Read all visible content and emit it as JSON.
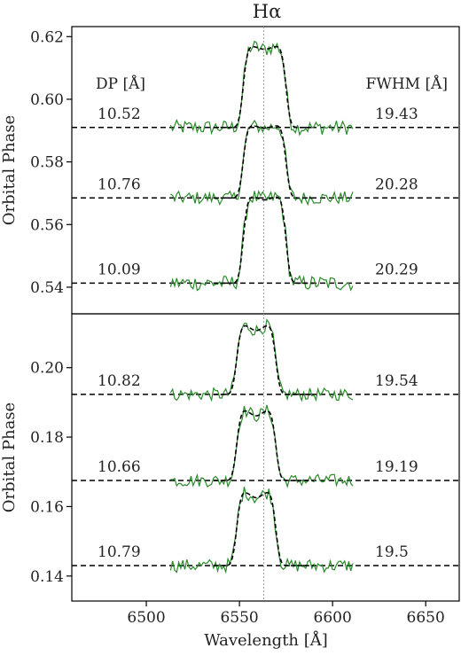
{
  "chart_data": {
    "type": "line",
    "title": "Hα",
    "xlabel": "Wavelength [Å]",
    "xlim": [
      6460,
      6668
    ],
    "xticks": [
      6500,
      6550,
      6600,
      6650
    ],
    "rest_wavelength_marker": 6563,
    "header_left": "DP [Å]",
    "header_right": "FWHM [Å]",
    "panels": [
      {
        "ylabel": "Orbital Phase",
        "ylim": [
          0.5315,
          0.6232
        ],
        "yticks": [
          0.54,
          0.56,
          0.58,
          0.6,
          0.62
        ],
        "ytick_labels": [
          "0.54",
          "0.56",
          "0.58",
          "0.60",
          "0.62"
        ],
        "profiles": [
          {
            "phase": 0.591,
            "peak_top": 0.617,
            "dp": "10.52",
            "fwhm": "19.43"
          },
          {
            "phase": 0.5685,
            "peak_top": 0.5917,
            "dp": "10.76",
            "fwhm": "20.28"
          },
          {
            "phase": 0.5413,
            "peak_top": 0.569,
            "dp": "10.09",
            "fwhm": "20.29"
          }
        ]
      },
      {
        "ylabel": "Orbital Phase",
        "ylim": [
          0.1328,
          0.2155
        ],
        "yticks": [
          0.14,
          0.16,
          0.18,
          0.2
        ],
        "ytick_labels": [
          "0.14",
          "0.16",
          "0.18",
          "0.20"
        ],
        "profiles": [
          {
            "phase": 0.1923,
            "peak_top": 0.2125,
            "dp": "10.82",
            "fwhm": "19.54"
          },
          {
            "phase": 0.1675,
            "peak_top": 0.188,
            "dp": "10.66",
            "fwhm": "19.19"
          },
          {
            "phase": 0.143,
            "peak_top": 0.1645,
            "dp": "10.79",
            "fwhm": "19.5"
          }
        ]
      }
    ]
  },
  "colors": {
    "observed": "#2a8a2a",
    "model": "#000000",
    "marker": "#9a9a9a",
    "axes": "#000000"
  }
}
